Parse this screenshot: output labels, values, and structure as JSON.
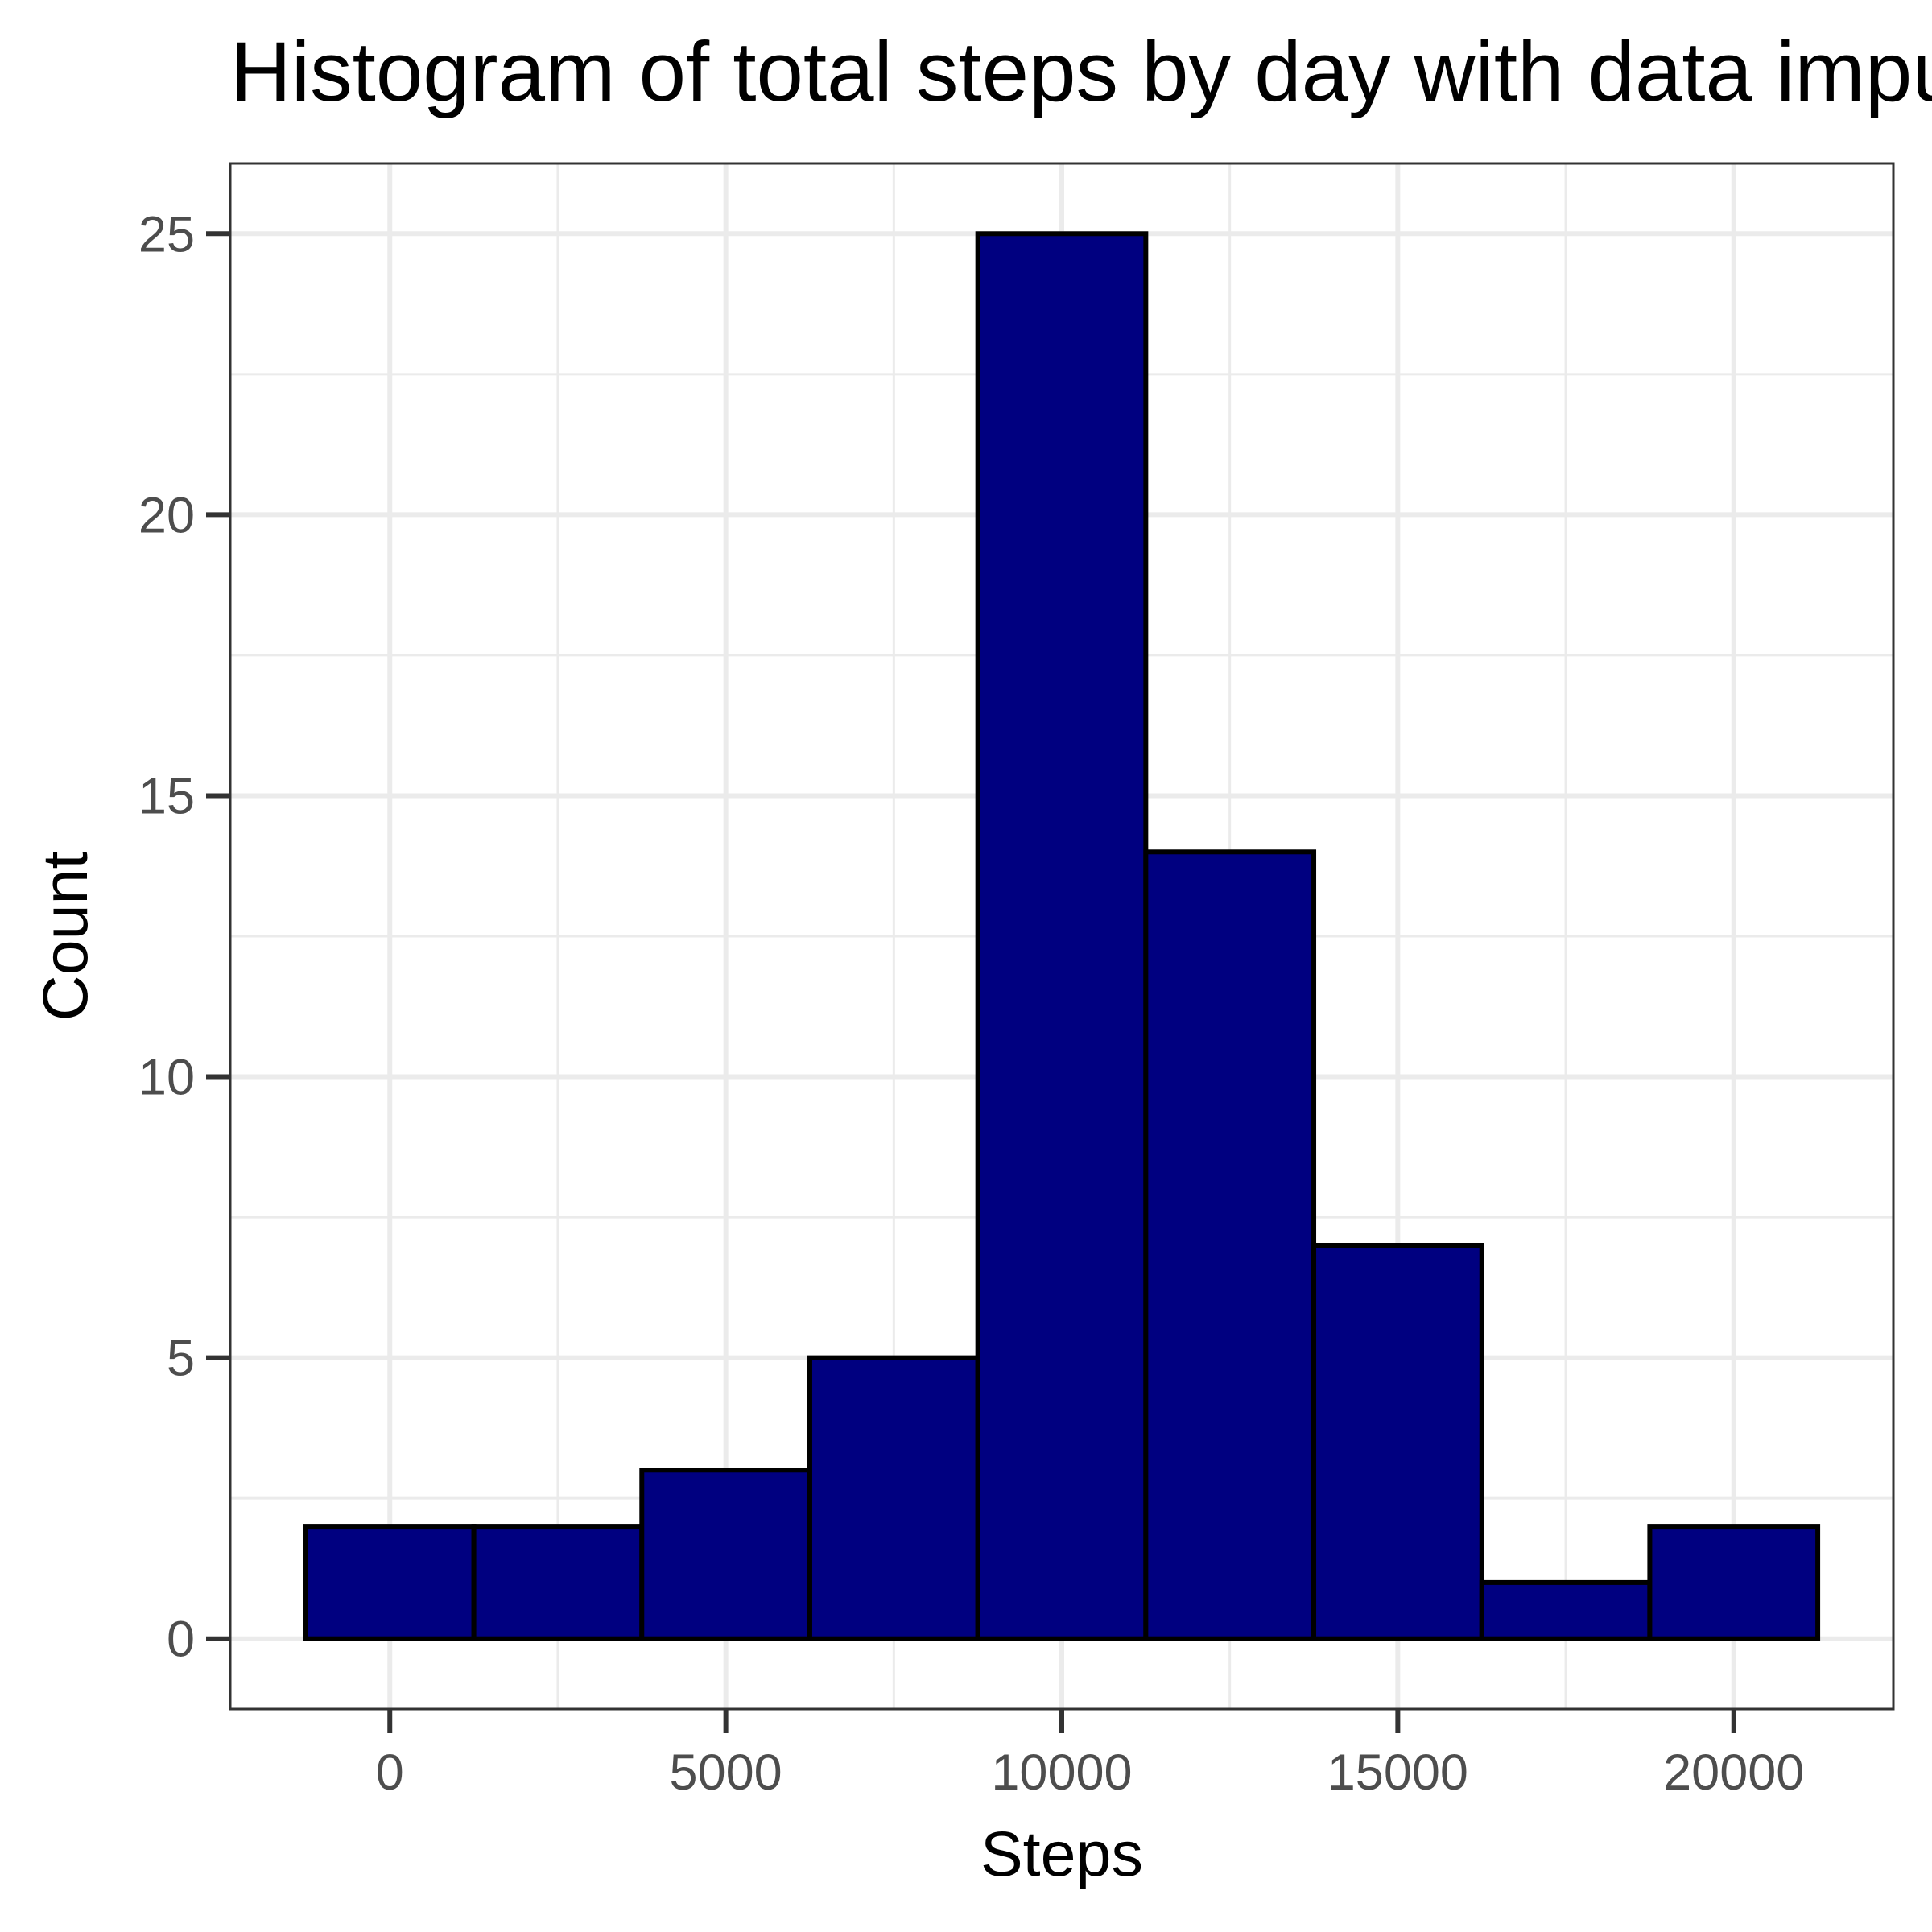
{
  "chart_data": {
    "type": "bar",
    "title": "Histogram of total steps by day with data imputed",
    "xlabel": "Steps",
    "ylabel": "Count",
    "bin_width": 2500,
    "bins": [
      {
        "x_start": -1250,
        "x_end": 1250,
        "count": 2
      },
      {
        "x_start": 1250,
        "x_end": 3750,
        "count": 2
      },
      {
        "x_start": 3750,
        "x_end": 6250,
        "count": 3
      },
      {
        "x_start": 6250,
        "x_end": 8750,
        "count": 5
      },
      {
        "x_start": 8750,
        "x_end": 11250,
        "count": 25
      },
      {
        "x_start": 11250,
        "x_end": 13750,
        "count": 14
      },
      {
        "x_start": 13750,
        "x_end": 16250,
        "count": 7
      },
      {
        "x_start": 16250,
        "x_end": 18750,
        "count": 1
      },
      {
        "x_start": 18750,
        "x_end": 21250,
        "count": 2
      }
    ],
    "x_ticks": [
      0,
      5000,
      10000,
      15000,
      20000
    ],
    "y_ticks": [
      0,
      5,
      10,
      15,
      20,
      25
    ],
    "xlim": [
      -2375,
      22375
    ],
    "ylim": [
      -1.25,
      26.25
    ],
    "bar_fill": "#000080",
    "bar_outline": "#000000",
    "panel_background": "#ffffff",
    "grid_color": "#ebebeb",
    "grid": true,
    "legend": "none"
  }
}
